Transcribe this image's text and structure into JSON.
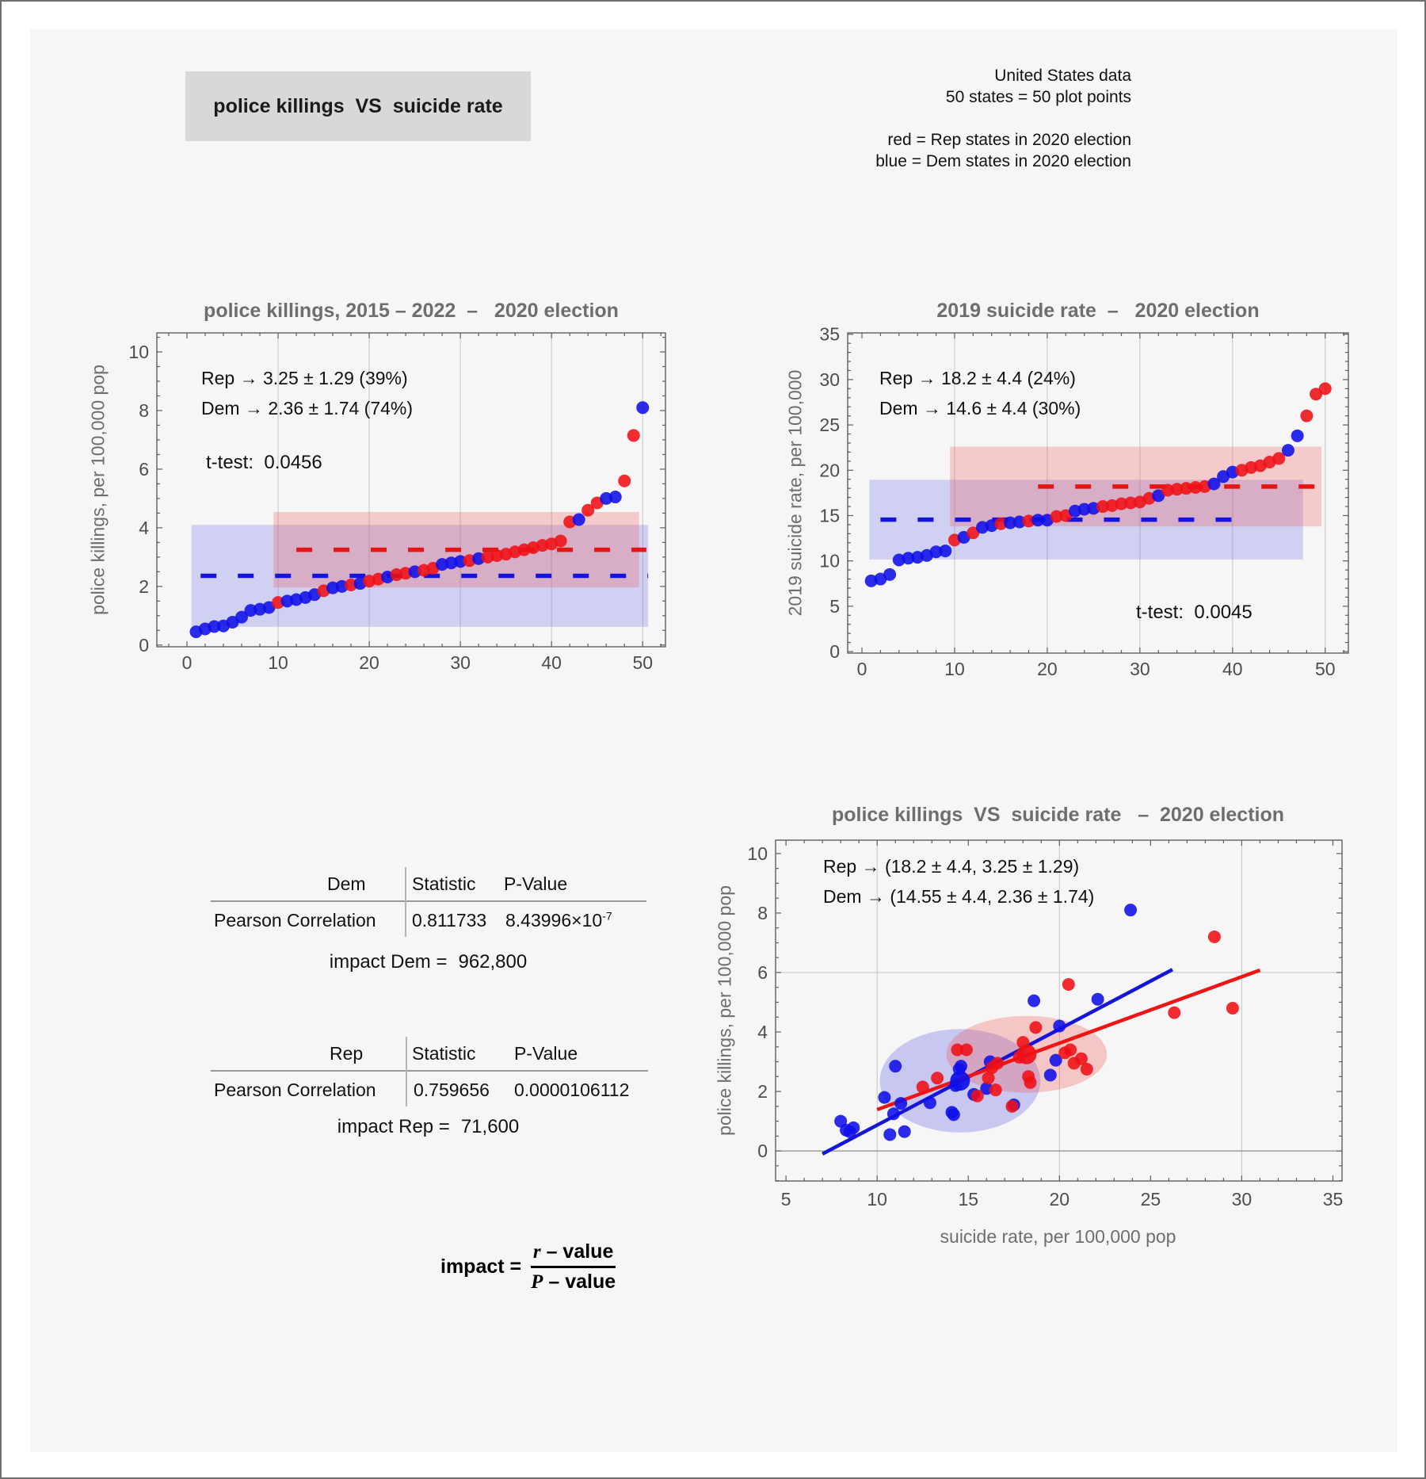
{
  "header": {
    "title": "police killings  VS  suicide rate"
  },
  "info_block": {
    "lines": [
      "United States data",
      "50 states = 50 plot points",
      "red = Rep states in 2020 election",
      "blue = Dem states in 2020 election"
    ]
  },
  "colors": {
    "dem": "#0f0fe8",
    "rep": "#ef1016",
    "dem_dash": "#1414dd",
    "rep_dash": "#e81414",
    "dem_line": "#1515d8",
    "rep_line": "#ee1515",
    "dem_band": "rgba(100,100,232,0.26)",
    "rep_band": "rgba(242,86,86,0.27)",
    "dem_ell": "rgba(100,100,232,0.32)",
    "rep_ell": "rgba(242,86,86,0.30)",
    "grid": "#c9c9c9",
    "frame": "#5f5f5f",
    "tick_text": "#4d4d4d",
    "title_text": "#6e6e6e"
  },
  "chart_data": [
    {
      "id": "police-killings-sorted",
      "type": "scatter",
      "title": "police killings, 2015 – 2022  –   2020 election",
      "ylabel": "police killings, per 100,000 pop",
      "annotations": {
        "rep": "Rep → 3.25 ± 1.29 (39%)",
        "dem": "Dem → 2.36 ± 1.74 (74%)",
        "ttest": "t-test:  0.0456"
      },
      "rep_stats": {
        "mean": 3.25,
        "sd": 1.29,
        "cv_pct": 39
      },
      "dem_stats": {
        "mean": 2.36,
        "sd": 1.74,
        "cv_pct": 74
      },
      "xlim": [
        -3.3,
        52.5
      ],
      "ylim": [
        -0.06,
        10.65
      ],
      "xticks": [
        0,
        10,
        20,
        30,
        40,
        50
      ],
      "yticks": [
        0,
        2,
        4,
        6,
        8,
        10
      ],
      "grid_x": [
        10,
        20,
        30,
        40,
        50
      ],
      "grid_y": [],
      "bands": [
        {
          "party": "dem",
          "x1": 0.5,
          "x2": 50.6,
          "y1": 0.62,
          "y2": 4.1
        },
        {
          "party": "rep",
          "x1": 9.5,
          "x2": 49.6,
          "y1": 1.96,
          "y2": 4.54
        }
      ],
      "mean_lines": [
        {
          "party": "dem",
          "y": 2.36,
          "x1": 1.5,
          "x2": 50.6
        },
        {
          "party": "rep",
          "y": 3.25,
          "x1": 12.0,
          "x2": 50.4
        }
      ],
      "values": [
        0.45,
        0.55,
        0.63,
        0.65,
        0.78,
        0.95,
        1.18,
        1.22,
        1.28,
        1.45,
        1.5,
        1.55,
        1.62,
        1.72,
        1.85,
        1.95,
        2.0,
        2.05,
        2.1,
        2.18,
        2.25,
        2.32,
        2.4,
        2.45,
        2.5,
        2.55,
        2.62,
        2.75,
        2.8,
        2.85,
        2.88,
        2.95,
        3.0,
        3.05,
        3.1,
        3.18,
        3.25,
        3.32,
        3.4,
        3.45,
        3.55,
        4.2,
        4.28,
        4.6,
        4.85,
        5.0,
        5.05,
        5.6,
        7.15,
        8.1
      ],
      "party": [
        "D",
        "D",
        "D",
        "D",
        "D",
        "D",
        "D",
        "D",
        "D",
        "R",
        "D",
        "D",
        "D",
        "D",
        "R",
        "D",
        "D",
        "R",
        "D",
        "R",
        "R",
        "D",
        "R",
        "R",
        "D",
        "R",
        "R",
        "D",
        "D",
        "D",
        "R",
        "D",
        "R",
        "R",
        "R",
        "R",
        "R",
        "R",
        "R",
        "R",
        "R",
        "R",
        "D",
        "R",
        "R",
        "D",
        "D",
        "R",
        "R",
        "D"
      ]
    },
    {
      "id": "suicide-rate-sorted",
      "type": "scatter",
      "title": "2019 suicide rate  –   2020 election",
      "ylabel": "2019 suicide rate, per 100,000",
      "annotations": {
        "rep": "Rep → 18.2 ± 4.4 (24%)",
        "dem": "Dem → 14.6 ± 4.4 (30%)",
        "ttest": "t-test:  0.0045"
      },
      "rep_stats": {
        "mean": 18.2,
        "sd": 4.4,
        "cv_pct": 24
      },
      "dem_stats": {
        "mean": 14.6,
        "sd": 4.4,
        "cv_pct": 30
      },
      "xlim": [
        -1.54,
        52.5
      ],
      "ylim": [
        -0.17,
        35.15
      ],
      "xticks": [
        0,
        10,
        20,
        30,
        40,
        50
      ],
      "yticks": [
        0,
        5,
        10,
        15,
        20,
        25,
        30,
        35
      ],
      "grid_x": [
        10,
        20,
        30,
        40,
        50
      ],
      "grid_y": [],
      "bands": [
        {
          "party": "dem",
          "x1": 0.8,
          "x2": 47.6,
          "y1": 10.15,
          "y2": 18.95
        },
        {
          "party": "rep",
          "x1": 9.5,
          "x2": 49.6,
          "y1": 13.8,
          "y2": 22.6
        }
      ],
      "mean_lines": [
        {
          "party": "dem",
          "y": 14.55,
          "x1": 2.0,
          "x2": 41.0
        },
        {
          "party": "rep",
          "y": 18.2,
          "x1": 19.0,
          "x2": 50.4
        }
      ],
      "values": [
        7.8,
        8.0,
        8.5,
        10.1,
        10.3,
        10.4,
        10.6,
        11.0,
        11.1,
        12.3,
        12.6,
        13.1,
        13.7,
        13.9,
        14.1,
        14.2,
        14.3,
        14.4,
        14.5,
        14.5,
        14.9,
        15.0,
        15.5,
        15.7,
        15.8,
        16.0,
        16.1,
        16.3,
        16.4,
        16.5,
        16.9,
        17.2,
        17.8,
        17.9,
        18.0,
        18.1,
        18.2,
        18.5,
        19.3,
        19.8,
        20.0,
        20.3,
        20.5,
        20.9,
        21.3,
        22.2,
        23.8,
        26.0,
        28.4,
        29.0
      ],
      "party": [
        "D",
        "D",
        "D",
        "D",
        "D",
        "D",
        "D",
        "D",
        "D",
        "R",
        "D",
        "R",
        "D",
        "D",
        "R",
        "D",
        "D",
        "R",
        "D",
        "D",
        "R",
        "R",
        "D",
        "D",
        "D",
        "R",
        "R",
        "R",
        "R",
        "R",
        "R",
        "D",
        "R",
        "R",
        "R",
        "R",
        "R",
        "D",
        "D",
        "D",
        "R",
        "R",
        "R",
        "R",
        "R",
        "D",
        "D",
        "R",
        "R",
        "R"
      ]
    },
    {
      "id": "killings-vs-suicide-scatter",
      "type": "scatter",
      "title": "police killings  VS  suicide rate   –  2020 election",
      "xlabel": "suicide rate, per 100,000 pop",
      "ylabel": "police killings, per 100,000 pop",
      "annotations": {
        "rep": "Rep → (18.2 ± 4.4, 3.25 ± 1.29)",
        "dem": "Dem → (14.55 ± 4.4, 2.36 ± 1.74)"
      },
      "xlim": [
        4.43,
        35.5
      ],
      "ylim": [
        -1.01,
        10.45
      ],
      "xticks": [
        5,
        10,
        15,
        20,
        25,
        30,
        35
      ],
      "yticks": [
        0,
        2,
        4,
        6,
        8,
        10
      ],
      "grid_x": [
        10,
        20,
        30
      ],
      "grid_y": [
        6
      ],
      "axis_y": 0,
      "ellipses": [
        {
          "party": "dem",
          "cx": 14.55,
          "cy": 2.36,
          "rx": 4.4,
          "ry": 1.74
        },
        {
          "party": "rep",
          "cx": 18.2,
          "cy": 3.25,
          "rx": 4.4,
          "ry": 1.29
        }
      ],
      "fit_lines": [
        {
          "party": "dem",
          "x1": 7.0,
          "y1": -0.1,
          "x2": 26.2,
          "y2": 6.1
        },
        {
          "party": "rep",
          "x1": 10.0,
          "y1": 1.39,
          "x2": 31.0,
          "y2": 6.08
        }
      ],
      "centroids": [
        {
          "party": "dem",
          "x": 14.55,
          "y": 2.36
        },
        {
          "party": "rep",
          "x": 18.2,
          "y": 3.25
        }
      ],
      "points_dem": [
        [
          8.0,
          1.0
        ],
        [
          8.3,
          0.7
        ],
        [
          8.5,
          0.65
        ],
        [
          8.7,
          0.78
        ],
        [
          10.4,
          1.8
        ],
        [
          10.7,
          0.55
        ],
        [
          10.9,
          1.25
        ],
        [
          11.0,
          2.85
        ],
        [
          11.3,
          1.6
        ],
        [
          11.5,
          0.65
        ],
        [
          12.9,
          1.62
        ],
        [
          14.1,
          1.3
        ],
        [
          14.2,
          1.22
        ],
        [
          14.3,
          2.2
        ],
        [
          14.5,
          2.75
        ],
        [
          14.6,
          2.85
        ],
        [
          15.3,
          1.9
        ],
        [
          16.0,
          2.1
        ],
        [
          16.2,
          3.0
        ],
        [
          17.5,
          1.55
        ],
        [
          18.6,
          5.05
        ],
        [
          19.5,
          2.55
        ],
        [
          19.8,
          3.05
        ],
        [
          20.0,
          4.2
        ],
        [
          22.1,
          5.1
        ],
        [
          23.9,
          8.1
        ]
      ],
      "points_rep": [
        [
          12.5,
          2.15
        ],
        [
          13.3,
          2.45
        ],
        [
          14.4,
          3.4
        ],
        [
          14.9,
          3.4
        ],
        [
          15.5,
          1.85
        ],
        [
          16.1,
          2.45
        ],
        [
          16.3,
          2.8
        ],
        [
          16.5,
          2.05
        ],
        [
          16.6,
          2.95
        ],
        [
          17.4,
          1.5
        ],
        [
          17.8,
          3.15
        ],
        [
          18.0,
          3.65
        ],
        [
          18.3,
          2.5
        ],
        [
          18.4,
          2.3
        ],
        [
          18.7,
          4.15
        ],
        [
          20.3,
          3.3
        ],
        [
          20.5,
          5.6
        ],
        [
          20.6,
          3.4
        ],
        [
          20.8,
          2.95
        ],
        [
          21.2,
          3.1
        ],
        [
          21.5,
          2.75
        ],
        [
          26.3,
          4.65
        ],
        [
          28.5,
          7.2
        ],
        [
          29.5,
          4.8
        ]
      ]
    }
  ],
  "stats_tables": [
    {
      "corner": "Dem",
      "col_statistic": "Statistic",
      "col_pvalue": "P-Value",
      "row_label": "Pearson Correlation",
      "statistic": "0.811733",
      "pvalue_base": "8.43996×10",
      "pvalue_exp": "-7",
      "impact_label": "impact Dem =",
      "impact_value": "962,800"
    },
    {
      "corner": "Rep",
      "col_statistic": "Statistic",
      "col_pvalue": "P-Value",
      "row_label": "Pearson Correlation",
      "statistic": "0.759656",
      "pvalue_base": "0.0000106112",
      "pvalue_exp": "",
      "impact_label": "impact Rep =",
      "impact_value": "71,600"
    }
  ],
  "formula": {
    "lhs": "impact =",
    "num_var": "r",
    "num_rest": " – value",
    "den_var": "P",
    "den_rest": " – value"
  }
}
